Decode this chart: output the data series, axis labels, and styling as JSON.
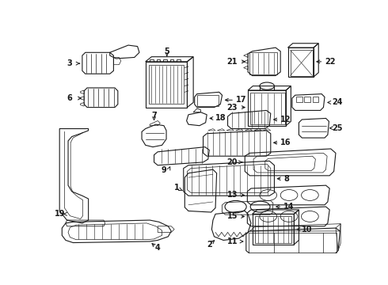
{
  "bg_color": "#ffffff",
  "line_color": "#1a1a1a",
  "lw": 0.8,
  "figsize": [
    4.9,
    3.6
  ],
  "dpi": 100
}
